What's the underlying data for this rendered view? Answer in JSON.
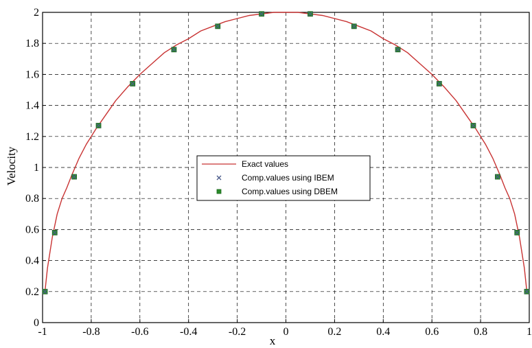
{
  "chart_data": {
    "type": "line",
    "xlabel": "x",
    "ylabel": "Velocity",
    "xlim": [
      -1,
      1
    ],
    "ylim": [
      0,
      2
    ],
    "x_ticks": [
      "-1",
      "-0.8",
      "-0.6",
      "-0.4",
      "-0.2",
      "0",
      "0.2",
      "0.4",
      "0.6",
      "0.8",
      "1"
    ],
    "y_ticks": [
      "0",
      "0.2",
      "0.4",
      "0.6",
      "0.8",
      "1",
      "1.2",
      "1.4",
      "1.6",
      "1.8",
      "2"
    ],
    "grid": true,
    "legend_position": "center",
    "series": [
      {
        "name": "Exact values",
        "kind": "line",
        "color": "#c83232",
        "x": [
          -0.99,
          -0.98,
          -0.96,
          -0.94,
          -0.92,
          -0.9,
          -0.88,
          -0.85,
          -0.82,
          -0.78,
          -0.74,
          -0.7,
          -0.65,
          -0.6,
          -0.55,
          -0.5,
          -0.45,
          -0.4,
          -0.35,
          -0.3,
          -0.25,
          -0.2,
          -0.15,
          -0.1,
          -0.05,
          0,
          0.05,
          0.1,
          0.15,
          0.2,
          0.25,
          0.3,
          0.35,
          0.4,
          0.45,
          0.5,
          0.55,
          0.6,
          0.65,
          0.7,
          0.74,
          0.78,
          0.82,
          0.85,
          0.88,
          0.9,
          0.92,
          0.94,
          0.96,
          0.98,
          0.99
        ],
        "y": [
          0.2,
          0.35,
          0.55,
          0.7,
          0.8,
          0.87,
          0.95,
          1.06,
          1.15,
          1.25,
          1.34,
          1.43,
          1.52,
          1.6,
          1.67,
          1.74,
          1.79,
          1.83,
          1.88,
          1.91,
          1.94,
          1.96,
          1.98,
          1.99,
          2.0,
          2.0,
          2.0,
          1.99,
          1.98,
          1.96,
          1.94,
          1.91,
          1.88,
          1.83,
          1.79,
          1.74,
          1.67,
          1.6,
          1.52,
          1.43,
          1.34,
          1.25,
          1.15,
          1.06,
          0.95,
          0.87,
          0.8,
          0.7,
          0.55,
          0.35,
          0.2
        ]
      },
      {
        "name": "Comp.values using IBEM",
        "kind": "marker",
        "marker": "x",
        "color": "#4a5a8a",
        "x": [
          -0.99,
          -0.95,
          -0.87,
          -0.77,
          -0.63,
          -0.46,
          -0.28,
          -0.1,
          0.1,
          0.28,
          0.46,
          0.63,
          0.77,
          0.87,
          0.95,
          0.99
        ],
        "y": [
          0.2,
          0.58,
          0.94,
          1.27,
          1.54,
          1.76,
          1.91,
          1.99,
          1.99,
          1.91,
          1.76,
          1.54,
          1.27,
          0.94,
          0.58,
          0.2
        ]
      },
      {
        "name": "Comp.values using DBEM",
        "kind": "marker",
        "marker": "square",
        "color": "#2a8a2a",
        "x": [
          -0.99,
          -0.95,
          -0.87,
          -0.77,
          -0.63,
          -0.46,
          -0.28,
          -0.1,
          0.1,
          0.28,
          0.46,
          0.63,
          0.77,
          0.87,
          0.95,
          0.99
        ],
        "y": [
          0.2,
          0.58,
          0.94,
          1.27,
          1.54,
          1.76,
          1.91,
          1.99,
          1.99,
          1.91,
          1.76,
          1.54,
          1.27,
          0.94,
          0.58,
          0.2
        ]
      }
    ]
  }
}
